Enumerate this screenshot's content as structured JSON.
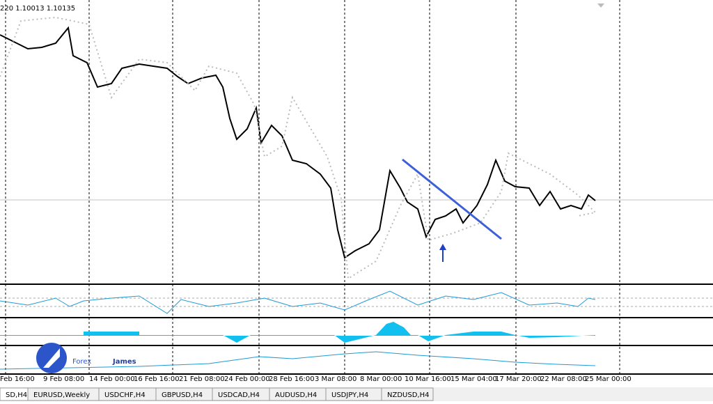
{
  "header": {
    "quote": "220 1.10013 1.10135"
  },
  "time_axis": [
    "Feb 16:00",
    "9 Feb 08:00",
    "14 Feb 00:00",
    "16 Feb 16:00",
    "21 Feb 08:00",
    "24 Feb 00:00",
    "28 Feb 16:00",
    "3 Mar 08:00",
    "8 Mar 00:00",
    "10 Mar 16:00",
    "15 Mar 04:00",
    "17 Mar 20:00",
    "22 Mar 08:00",
    "25 Mar 00:00"
  ],
  "tabs": [
    "SD,H4",
    "EURUSD,Weekly",
    "USDCHF,H4",
    "GBPUSD,H4",
    "USDCAD,H4",
    "AUDUSD,H4",
    "USDJPY,H4",
    "NZDUSD,H4"
  ],
  "logo": {
    "first": "Forex",
    "second": "James"
  }
}
